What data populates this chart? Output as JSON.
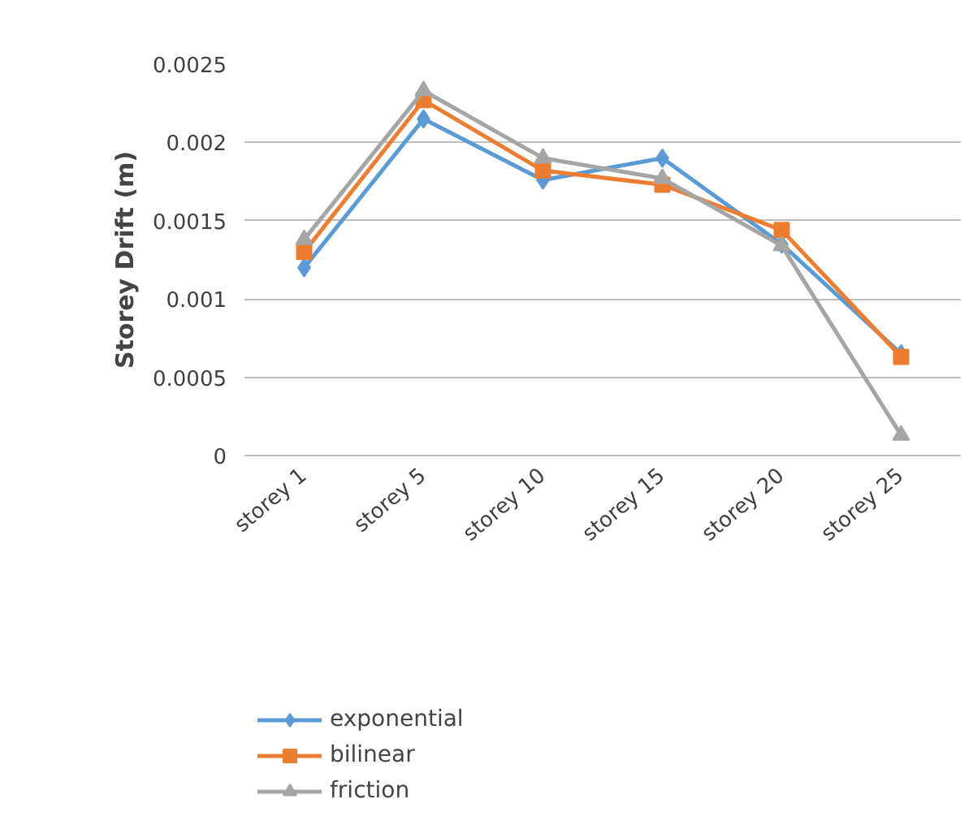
{
  "chart_data": {
    "type": "line",
    "ylabel": "Storey Drift (m)",
    "categories": [
      "storey 1",
      "storey 5",
      "storey 10",
      "storey 15",
      "storey 20",
      "storey 25"
    ],
    "series": [
      {
        "name": "exponential",
        "color": "#5b9bd5",
        "marker": "diamond",
        "values": [
          0.0012,
          0.00215,
          0.00176,
          0.0019,
          0.00135,
          0.00065
        ]
      },
      {
        "name": "bilinear",
        "color": "#ed7d31",
        "marker": "square",
        "values": [
          0.0013,
          0.00227,
          0.00182,
          0.00173,
          0.00144,
          0.00063
        ]
      },
      {
        "name": "friction",
        "color": "#a5a5a5",
        "marker": "triangle",
        "values": [
          0.00138,
          0.00233,
          0.0019,
          0.00177,
          0.00134,
          0.00013
        ]
      }
    ],
    "ylim": [
      0,
      0.0025
    ],
    "yticks": [
      0,
      0.0005,
      0.001,
      0.0015,
      0.002,
      0.0025
    ],
    "grid": "y",
    "legend": "bottom left"
  }
}
